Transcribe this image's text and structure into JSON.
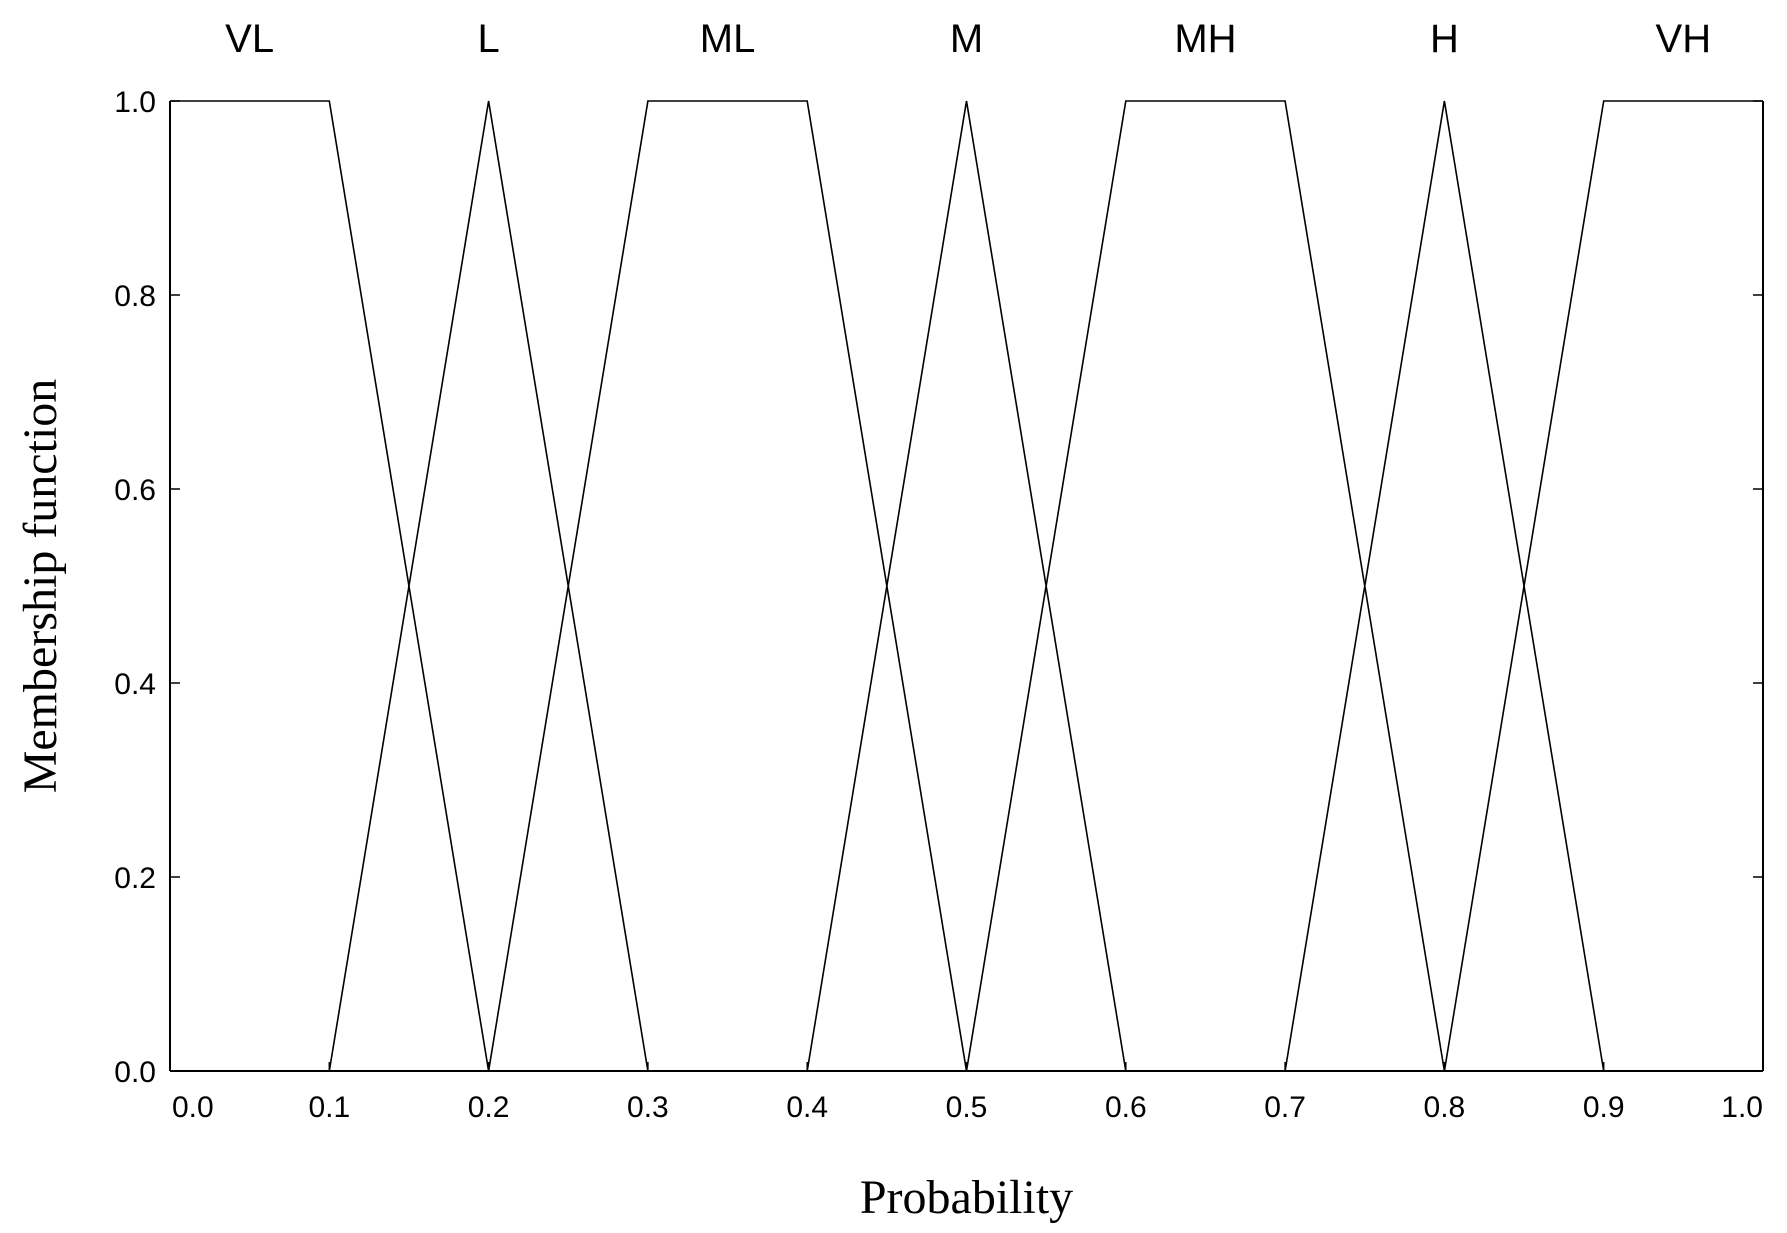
{
  "chart_data": {
    "type": "line",
    "title": "",
    "xlabel": "Probability",
    "ylabel": "Membership  function",
    "xlim": [
      0.0,
      1.0
    ],
    "ylim": [
      0.0,
      1.0
    ],
    "x_ticks": [
      "0.0",
      "0.1",
      "0.2",
      "0.3",
      "0.4",
      "0.5",
      "0.6",
      "0.7",
      "0.8",
      "0.9",
      "1.0"
    ],
    "y_ticks": [
      "0.0",
      "0.2",
      "0.4",
      "0.6",
      "0.8",
      "1.0"
    ],
    "grid": false,
    "series": [
      {
        "name": "VL",
        "x": [
          0.0,
          0.1,
          0.2
        ],
        "y": [
          1.0,
          1.0,
          0.0
        ]
      },
      {
        "name": "L",
        "x": [
          0.1,
          0.2,
          0.3
        ],
        "y": [
          0.0,
          1.0,
          0.0
        ]
      },
      {
        "name": "ML",
        "x": [
          0.2,
          0.3,
          0.4,
          0.5
        ],
        "y": [
          0.0,
          1.0,
          1.0,
          0.0
        ]
      },
      {
        "name": "M",
        "x": [
          0.4,
          0.5,
          0.6
        ],
        "y": [
          0.0,
          1.0,
          0.0
        ]
      },
      {
        "name": "MH",
        "x": [
          0.5,
          0.6,
          0.7,
          0.8
        ],
        "y": [
          0.0,
          1.0,
          1.0,
          0.0
        ]
      },
      {
        "name": "H",
        "x": [
          0.7,
          0.8,
          0.9
        ],
        "y": [
          0.0,
          1.0,
          0.0
        ]
      },
      {
        "name": "VH",
        "x": [
          0.8,
          0.9,
          1.0
        ],
        "y": [
          0.0,
          1.0,
          1.0
        ]
      }
    ]
  }
}
